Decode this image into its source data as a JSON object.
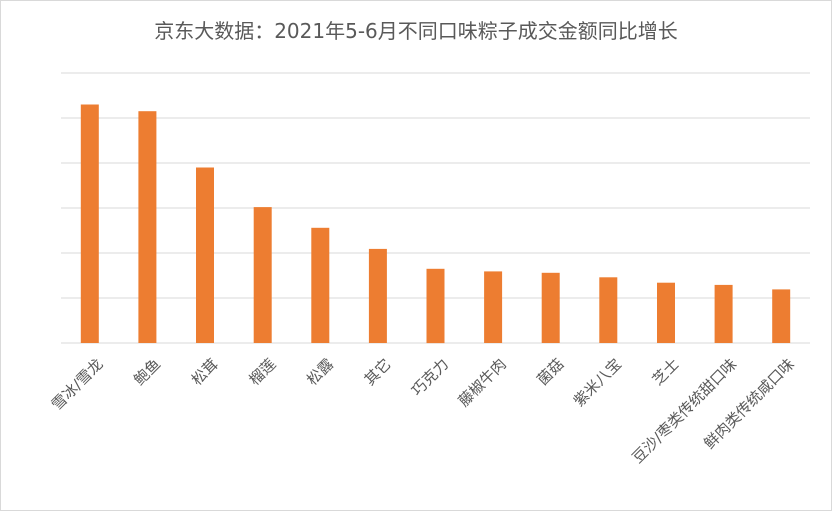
{
  "chart_data": {
    "type": "bar",
    "title": "京东大数据：2021年5-6月不同口味粽子成交金额同比增长",
    "categories": [
      "雪冰/雪龙",
      "鲍鱼",
      "松茸",
      "榴莲",
      "松露",
      "其它",
      "巧克力",
      "藤椒牛肉",
      "菌菇",
      "紫米八宝",
      "芝士",
      "豆沙/枣类传统甜口味",
      "鲜肉类传统咸口味"
    ],
    "values": [
      5.3,
      5.15,
      3.9,
      3.02,
      2.56,
      2.09,
      1.65,
      1.59,
      1.56,
      1.46,
      1.34,
      1.29,
      1.19
    ],
    "ylim": [
      0,
      6
    ],
    "grid": true,
    "y_tick_labels_shown": false,
    "colors": {
      "bar": "#ED7D31",
      "grid": "#D9D9D9",
      "text": "#595959"
    }
  }
}
